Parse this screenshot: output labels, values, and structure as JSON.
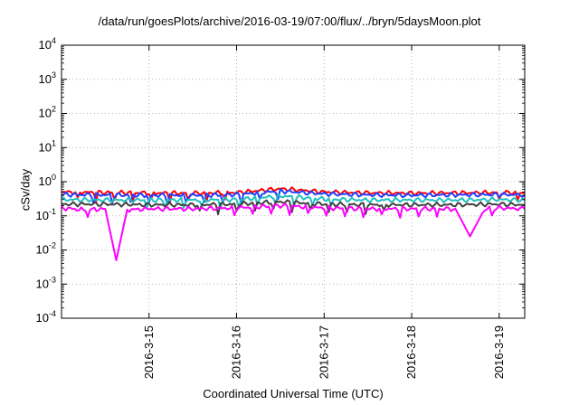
{
  "chart_data": {
    "type": "line",
    "title": "/data/run/goesPlots/archive/2016-03-19/07:00/flux/../bryn/5daysMoon.plot",
    "xlabel": "Coordinated Universal Time (UTC)",
    "ylabel": "cSv/day",
    "y_scale": "log",
    "ylim": [
      0.0001,
      10000
    ],
    "y_ticks": [
      {
        "value": 0.0001,
        "base": "10",
        "exp": "-4"
      },
      {
        "value": 0.001,
        "base": "10",
        "exp": "-3"
      },
      {
        "value": 0.01,
        "base": "10",
        "exp": "-2"
      },
      {
        "value": 0.1,
        "base": "10",
        "exp": "-1"
      },
      {
        "value": 1,
        "base": "10",
        "exp": "0"
      },
      {
        "value": 10,
        "base": "10",
        "exp": "1"
      },
      {
        "value": 100,
        "base": "10",
        "exp": "2"
      },
      {
        "value": 1000,
        "base": "10",
        "exp": "3"
      },
      {
        "value": 10000,
        "base": "10",
        "exp": "4"
      }
    ],
    "xlim": [
      "2016-03-14 00:00",
      "2016-03-19 07:00"
    ],
    "x_ticks": [
      {
        "date": "2016-03-15 00:00",
        "label": "2016-3-15"
      },
      {
        "date": "2016-03-16 00:00",
        "label": "2016-3-16"
      },
      {
        "date": "2016-03-17 00:00",
        "label": "2016-3-17"
      },
      {
        "date": "2016-03-18 00:00",
        "label": "2016-3-18"
      },
      {
        "date": "2016-03-19 00:00",
        "label": "2016-3-19"
      }
    ],
    "grid": true,
    "series": [
      {
        "color": "#ff0000",
        "values": [
          {
            "x": "2016-03-14 00:00",
            "y": 0.5
          },
          {
            "x": "2016-03-14 12:00",
            "y": 0.48
          },
          {
            "x": "2016-03-15 00:00",
            "y": 0.47
          },
          {
            "x": "2016-03-15 12:00",
            "y": 0.46
          },
          {
            "x": "2016-03-16 00:00",
            "y": 0.48
          },
          {
            "x": "2016-03-16 12:00",
            "y": 0.62
          },
          {
            "x": "2016-03-17 00:00",
            "y": 0.5
          },
          {
            "x": "2016-03-17 12:00",
            "y": 0.47
          },
          {
            "x": "2016-03-18 00:00",
            "y": 0.46
          },
          {
            "x": "2016-03-18 12:00",
            "y": 0.47
          },
          {
            "x": "2016-03-19 00:00",
            "y": 0.48
          },
          {
            "x": "2016-03-19 07:00",
            "y": 0.47
          }
        ]
      },
      {
        "color": "#2040ff",
        "values": [
          {
            "x": "2016-03-14 00:00",
            "y": 0.42
          },
          {
            "x": "2016-03-14 12:00",
            "y": 0.41
          },
          {
            "x": "2016-03-15 00:00",
            "y": 0.4
          },
          {
            "x": "2016-03-15 12:00",
            "y": 0.4
          },
          {
            "x": "2016-03-16 00:00",
            "y": 0.42
          },
          {
            "x": "2016-03-16 12:00",
            "y": 0.53
          },
          {
            "x": "2016-03-17 00:00",
            "y": 0.44
          },
          {
            "x": "2016-03-17 12:00",
            "y": 0.41
          },
          {
            "x": "2016-03-18 00:00",
            "y": 0.4
          },
          {
            "x": "2016-03-18 12:00",
            "y": 0.41
          },
          {
            "x": "2016-03-19 00:00",
            "y": 0.42
          },
          {
            "x": "2016-03-19 07:00",
            "y": 0.41
          }
        ]
      },
      {
        "color": "#20c0c0",
        "values": [
          {
            "x": "2016-03-14 00:00",
            "y": 0.3
          },
          {
            "x": "2016-03-14 12:00",
            "y": 0.29
          },
          {
            "x": "2016-03-15 00:00",
            "y": 0.29
          },
          {
            "x": "2016-03-15 12:00",
            "y": 0.29
          },
          {
            "x": "2016-03-16 00:00",
            "y": 0.3
          },
          {
            "x": "2016-03-16 12:00",
            "y": 0.38
          },
          {
            "x": "2016-03-17 00:00",
            "y": 0.31
          },
          {
            "x": "2016-03-17 12:00",
            "y": 0.29
          },
          {
            "x": "2016-03-18 00:00",
            "y": 0.29
          },
          {
            "x": "2016-03-18 12:00",
            "y": 0.29
          },
          {
            "x": "2016-03-19 00:00",
            "y": 0.3
          },
          {
            "x": "2016-03-19 07:00",
            "y": 0.29
          }
        ]
      },
      {
        "color": "#404040",
        "values": [
          {
            "x": "2016-03-14 00:00",
            "y": 0.22
          },
          {
            "x": "2016-03-14 12:00",
            "y": 0.22
          },
          {
            "x": "2016-03-15 00:00",
            "y": 0.21
          },
          {
            "x": "2016-03-15 12:00",
            "y": 0.21
          },
          {
            "x": "2016-03-16 00:00",
            "y": 0.22
          },
          {
            "x": "2016-03-16 12:00",
            "y": 0.26
          },
          {
            "x": "2016-03-17 00:00",
            "y": 0.22
          },
          {
            "x": "2016-03-17 12:00",
            "y": 0.21
          },
          {
            "x": "2016-03-18 00:00",
            "y": 0.21
          },
          {
            "x": "2016-03-18 12:00",
            "y": 0.21
          },
          {
            "x": "2016-03-19 00:00",
            "y": 0.22
          },
          {
            "x": "2016-03-19 07:00",
            "y": 0.21
          }
        ]
      },
      {
        "color": "#ff00ff",
        "values": [
          {
            "x": "2016-03-14 00:00",
            "y": 0.17
          },
          {
            "x": "2016-03-14 06:00",
            "y": 0.15
          },
          {
            "x": "2016-03-14 12:00",
            "y": 0.16
          },
          {
            "x": "2016-03-14 15:00",
            "y": 0.005
          },
          {
            "x": "2016-03-14 18:00",
            "y": 0.15
          },
          {
            "x": "2016-03-15 00:00",
            "y": 0.16
          },
          {
            "x": "2016-03-15 12:00",
            "y": 0.16
          },
          {
            "x": "2016-03-16 00:00",
            "y": 0.17
          },
          {
            "x": "2016-03-16 12:00",
            "y": 0.2
          },
          {
            "x": "2016-03-17 00:00",
            "y": 0.17
          },
          {
            "x": "2016-03-17 12:00",
            "y": 0.16
          },
          {
            "x": "2016-03-18 00:00",
            "y": 0.16
          },
          {
            "x": "2016-03-18 12:00",
            "y": 0.16
          },
          {
            "x": "2016-03-18 16:00",
            "y": 0.025
          },
          {
            "x": "2016-03-18 20:00",
            "y": 0.16
          },
          {
            "x": "2016-03-19 00:00",
            "y": 0.17
          },
          {
            "x": "2016-03-19 07:00",
            "y": 0.16
          }
        ]
      }
    ]
  }
}
